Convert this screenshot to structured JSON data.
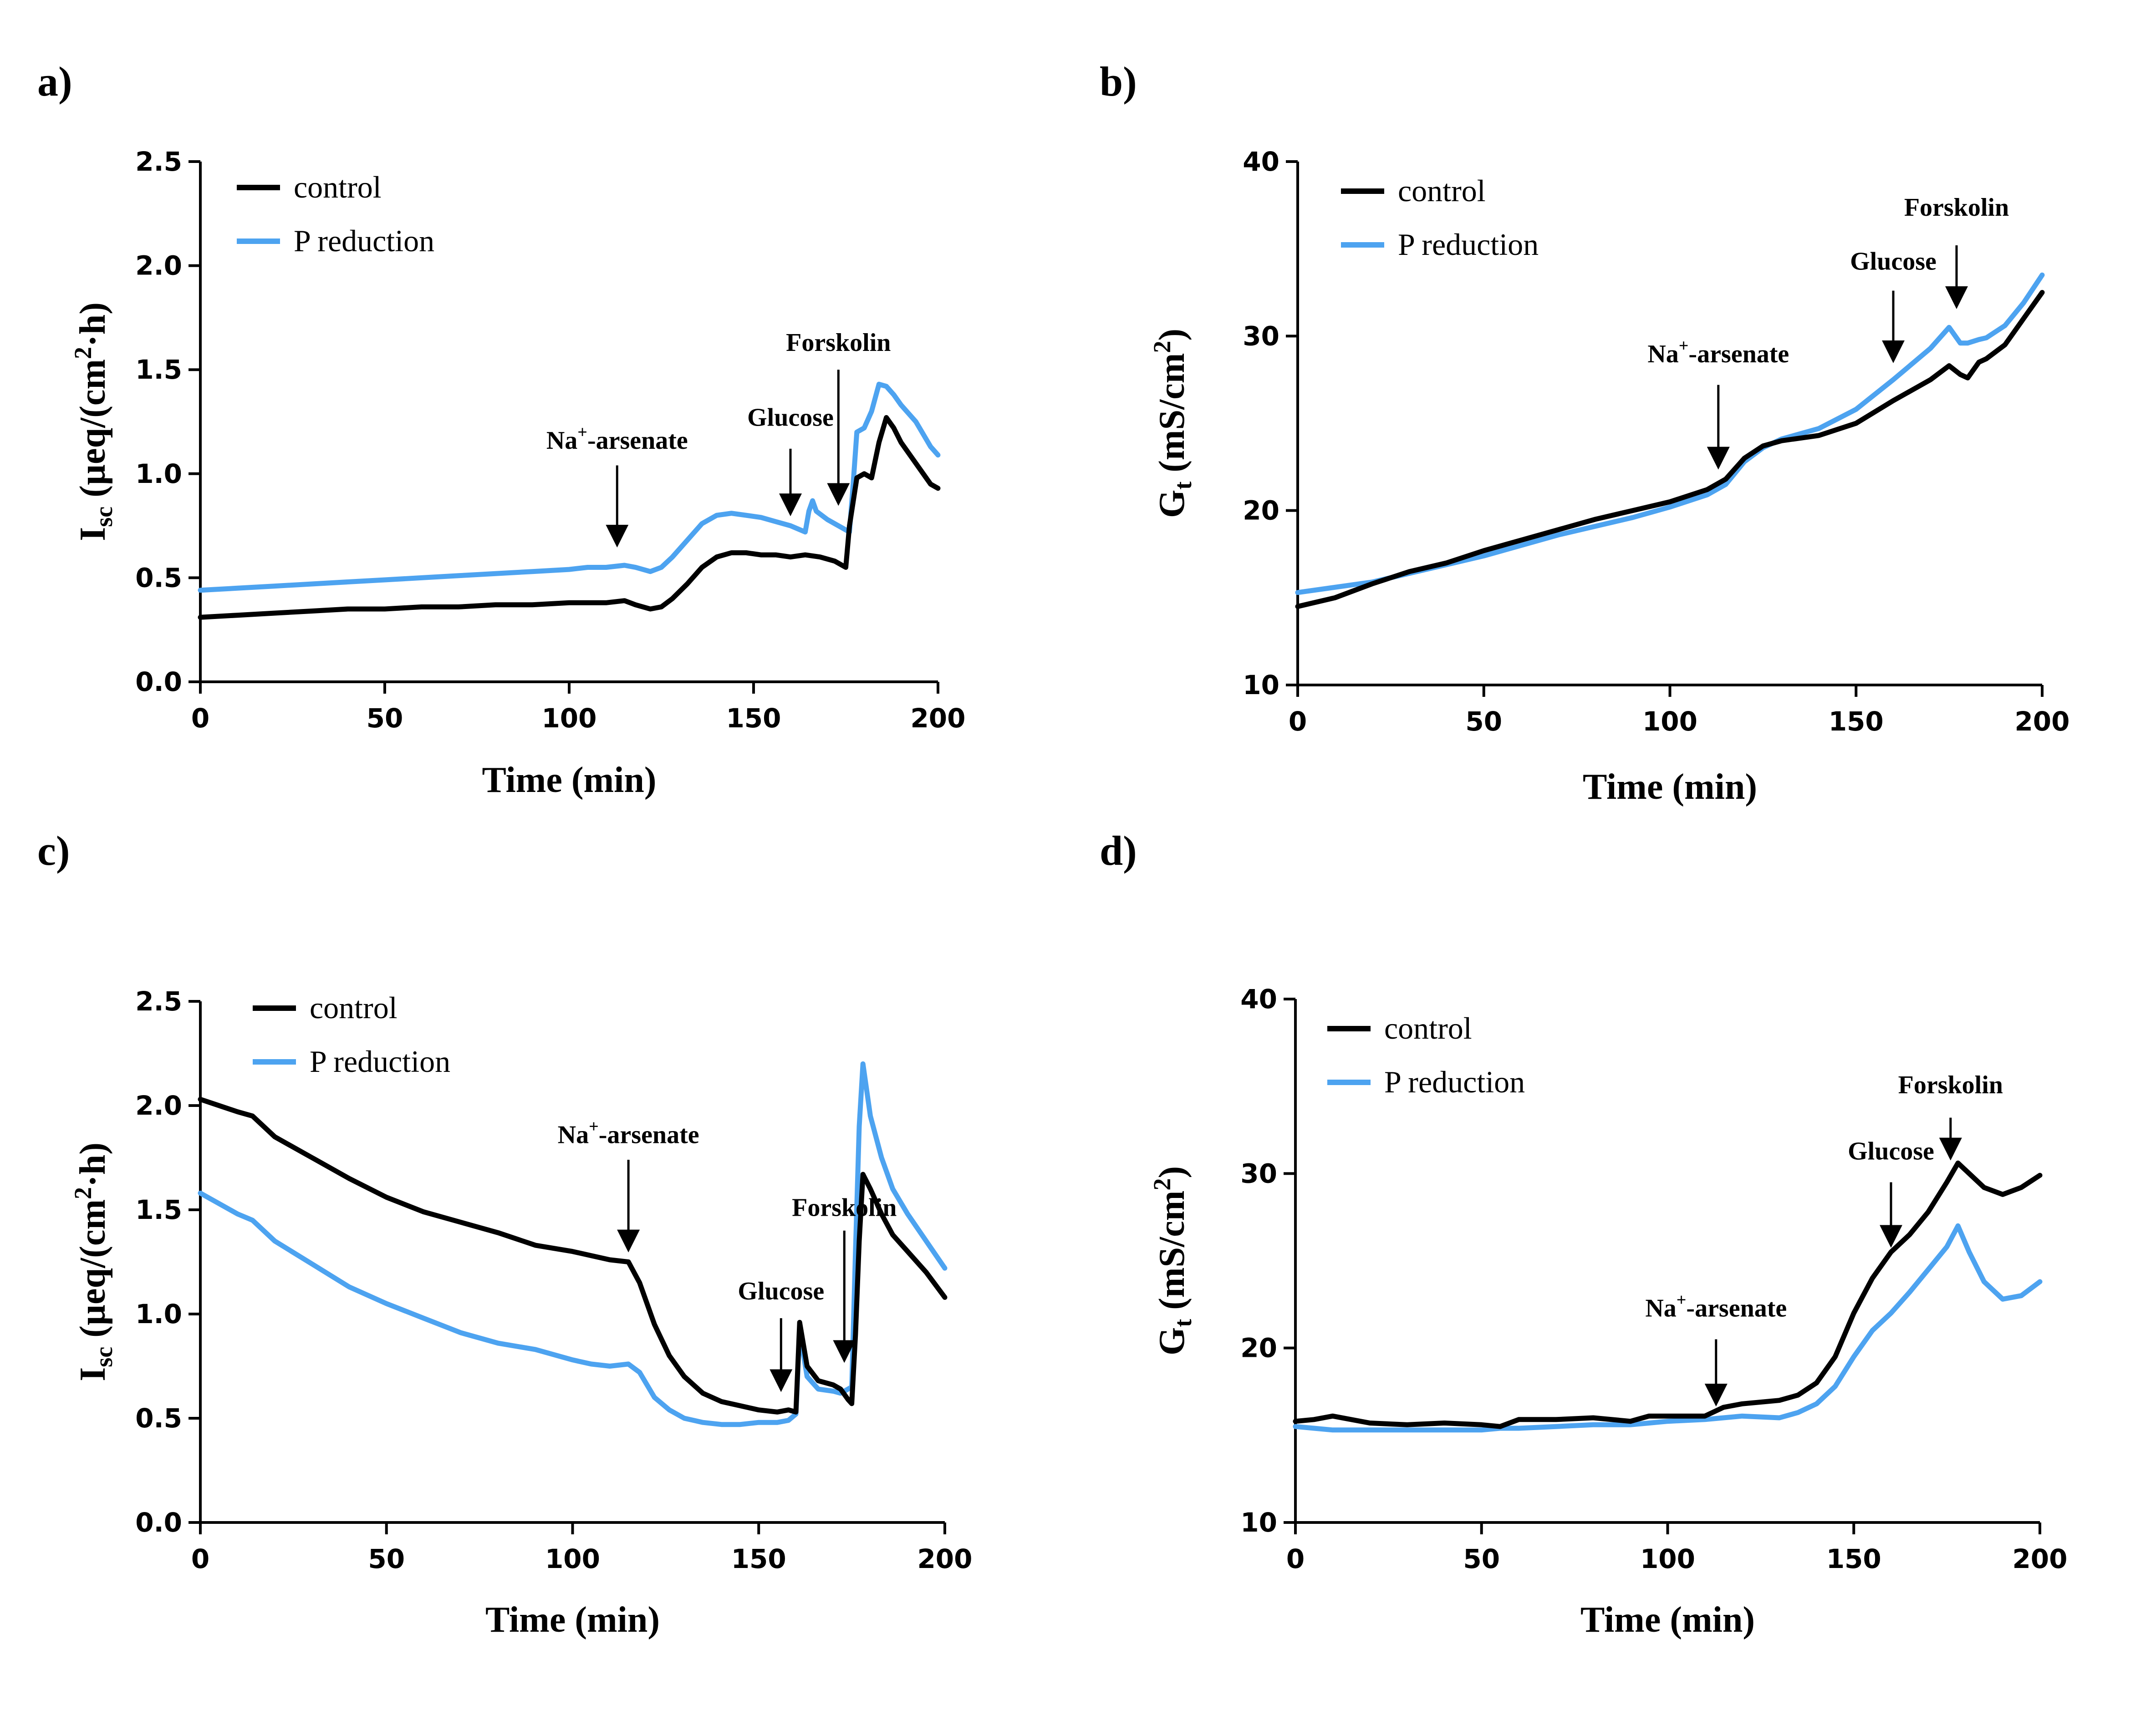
{
  "colors": {
    "control": "#000000",
    "p_reduction": "#4da3f0"
  },
  "chart_data": [
    {
      "panel": "a)",
      "type": "line",
      "xlabel": "Time (min)",
      "ylabel": {
        "main": "I",
        "sub": "sc",
        "rest1": " (µeq/(cm",
        "sup": "2",
        "rest2": "·h)"
      },
      "xlim": [
        0,
        200
      ],
      "ylim": [
        0,
        2.5
      ],
      "xticks": [
        0,
        50,
        100,
        150,
        200
      ],
      "xtick_labels": [
        "0",
        "50",
        "100",
        "150",
        "200"
      ],
      "yticks": [
        0,
        0.5,
        1.0,
        1.5,
        2.0,
        2.5
      ],
      "ytick_labels": [
        "0.0",
        "0.5",
        "1.0",
        "1.5",
        "2.0",
        "2.5"
      ],
      "legend": {
        "position": "top-left",
        "entries": [
          "control",
          "P reduction"
        ]
      },
      "series": [
        {
          "name": "control",
          "x": [
            0,
            10,
            20,
            30,
            40,
            50,
            60,
            70,
            80,
            90,
            100,
            105,
            110,
            115,
            118,
            122,
            125,
            128,
            132,
            136,
            140,
            144,
            148,
            152,
            156,
            160,
            164,
            168,
            172,
            175,
            176,
            178,
            180,
            182,
            184,
            186,
            188,
            190,
            194,
            198,
            200
          ],
          "y": [
            0.31,
            0.32,
            0.33,
            0.34,
            0.35,
            0.35,
            0.36,
            0.36,
            0.37,
            0.37,
            0.38,
            0.38,
            0.38,
            0.39,
            0.37,
            0.35,
            0.36,
            0.4,
            0.47,
            0.55,
            0.6,
            0.62,
            0.62,
            0.61,
            0.61,
            0.6,
            0.61,
            0.6,
            0.58,
            0.55,
            0.75,
            0.98,
            1.0,
            0.98,
            1.15,
            1.27,
            1.22,
            1.15,
            1.05,
            0.95,
            0.93
          ]
        },
        {
          "name": "P reduction",
          "x": [
            0,
            10,
            20,
            30,
            40,
            50,
            60,
            70,
            80,
            90,
            100,
            105,
            110,
            115,
            118,
            122,
            125,
            128,
            132,
            136,
            140,
            144,
            148,
            152,
            156,
            160,
            164,
            165,
            166,
            167,
            170,
            174,
            176,
            177,
            178,
            180,
            182,
            184,
            186,
            188,
            190,
            194,
            198,
            200
          ],
          "y": [
            0.44,
            0.45,
            0.46,
            0.47,
            0.48,
            0.49,
            0.5,
            0.51,
            0.52,
            0.53,
            0.54,
            0.55,
            0.55,
            0.56,
            0.55,
            0.53,
            0.55,
            0.6,
            0.68,
            0.76,
            0.8,
            0.81,
            0.8,
            0.79,
            0.77,
            0.75,
            0.72,
            0.82,
            0.87,
            0.82,
            0.78,
            0.74,
            0.72,
            0.95,
            1.2,
            1.22,
            1.3,
            1.43,
            1.42,
            1.38,
            1.33,
            1.25,
            1.13,
            1.09
          ]
        }
      ],
      "annotations": [
        {
          "label": "Na",
          "sup": "+",
          "rest": "-arsenate",
          "x": 113,
          "y_tip": 0.65,
          "y_tail": 1.04,
          "text_y": 1.12
        },
        {
          "label": "Glucose",
          "x": 160,
          "y_tip": 0.8,
          "y_tail": 1.12,
          "text_y": 1.23
        },
        {
          "label": "Forskolin",
          "x": 173,
          "y_tip": 0.85,
          "y_tail": 1.5,
          "text_y": 1.59
        }
      ]
    },
    {
      "panel": "b)",
      "type": "line",
      "xlabel": "Time (min)",
      "ylabel": {
        "main": "G",
        "sub": "t",
        "rest1": " (mS/cm",
        "sup": "2",
        "rest2": ")"
      },
      "xlim": [
        0,
        200
      ],
      "ylim": [
        10,
        40
      ],
      "xticks": [
        0,
        50,
        100,
        150,
        200
      ],
      "xtick_labels": [
        "0",
        "50",
        "100",
        "150",
        "200"
      ],
      "yticks": [
        10,
        20,
        30,
        40
      ],
      "ytick_labels": [
        "10",
        "20",
        "30",
        "40"
      ],
      "legend": {
        "position": "top-left",
        "entries": [
          "control",
          "P reduction"
        ]
      },
      "series": [
        {
          "name": "control",
          "x": [
            0,
            10,
            20,
            30,
            40,
            50,
            60,
            70,
            80,
            90,
            100,
            110,
            115,
            120,
            125,
            130,
            140,
            150,
            160,
            170,
            175,
            178,
            180,
            183,
            185,
            190,
            195,
            200
          ],
          "y": [
            14.5,
            15.0,
            15.8,
            16.5,
            17.0,
            17.7,
            18.3,
            18.9,
            19.5,
            20.0,
            20.5,
            21.2,
            21.8,
            23.0,
            23.7,
            24.0,
            24.3,
            25.0,
            26.3,
            27.5,
            28.3,
            27.8,
            27.6,
            28.5,
            28.7,
            29.5,
            31.0,
            32.5
          ]
        },
        {
          "name": "P reduction",
          "x": [
            0,
            10,
            20,
            30,
            40,
            50,
            60,
            70,
            80,
            90,
            100,
            110,
            115,
            120,
            125,
            130,
            140,
            150,
            160,
            170,
            175,
            178,
            180,
            183,
            185,
            190,
            195,
            200
          ],
          "y": [
            15.3,
            15.6,
            15.9,
            16.4,
            16.9,
            17.4,
            18.0,
            18.6,
            19.1,
            19.6,
            20.2,
            20.9,
            21.5,
            22.8,
            23.6,
            24.1,
            24.7,
            25.8,
            27.5,
            29.3,
            30.5,
            29.6,
            29.6,
            29.8,
            29.9,
            30.6,
            31.9,
            33.5
          ]
        }
      ],
      "annotations": [
        {
          "label": "Na",
          "sup": "+",
          "rest": "-arsenate",
          "x": 113,
          "y_tip": 22.4,
          "y_tail": 27.2,
          "text_y": 28.5
        },
        {
          "label": "Glucose",
          "x": 160,
          "y_tip": 28.5,
          "y_tail": 32.6,
          "text_y": 33.8
        },
        {
          "label": "Forskolin",
          "x": 177,
          "y_tip": 31.6,
          "y_tail": 35.2,
          "text_y": 36.9
        }
      ]
    },
    {
      "panel": "c)",
      "type": "line",
      "xlabel": "Time (min)",
      "ylabel": {
        "main": "I",
        "sub": "sc",
        "rest1": " (µeq/(cm",
        "sup": "2",
        "rest2": "·h)"
      },
      "xlim": [
        0,
        200
      ],
      "ylim": [
        0,
        2.5
      ],
      "xticks": [
        0,
        50,
        100,
        150,
        200
      ],
      "xtick_labels": [
        "0",
        "50",
        "100",
        "150",
        "200"
      ],
      "yticks": [
        0,
        0.5,
        1.0,
        1.5,
        2.0,
        2.5
      ],
      "ytick_labels": [
        "0.0",
        "0.5",
        "1.0",
        "1.5",
        "2.0",
        "2.5"
      ],
      "legend": {
        "position": "top-left",
        "entries": [
          "control",
          "P reduction"
        ]
      },
      "series": [
        {
          "name": "control",
          "x": [
            0,
            5,
            10,
            14,
            20,
            30,
            40,
            50,
            60,
            70,
            80,
            90,
            100,
            105,
            110,
            115,
            118,
            122,
            126,
            130,
            135,
            140,
            145,
            150,
            155,
            158,
            160,
            161,
            163,
            166,
            170,
            172,
            174,
            175,
            176,
            177,
            178,
            180,
            183,
            186,
            190,
            195,
            200
          ],
          "y": [
            2.03,
            2.0,
            1.97,
            1.95,
            1.85,
            1.75,
            1.65,
            1.56,
            1.49,
            1.44,
            1.39,
            1.33,
            1.3,
            1.28,
            1.26,
            1.25,
            1.15,
            0.95,
            0.8,
            0.7,
            0.62,
            0.58,
            0.56,
            0.54,
            0.53,
            0.54,
            0.53,
            0.96,
            0.75,
            0.68,
            0.66,
            0.64,
            0.59,
            0.57,
            0.9,
            1.35,
            1.67,
            1.6,
            1.48,
            1.38,
            1.3,
            1.2,
            1.08
          ]
        },
        {
          "name": "P reduction",
          "x": [
            0,
            5,
            10,
            14,
            20,
            30,
            40,
            50,
            60,
            70,
            80,
            90,
            100,
            105,
            110,
            115,
            118,
            122,
            126,
            130,
            135,
            140,
            145,
            150,
            155,
            158,
            160,
            161,
            163,
            166,
            170,
            172,
            174,
            175,
            176,
            177,
            178,
            180,
            183,
            186,
            190,
            195,
            200
          ],
          "y": [
            1.58,
            1.53,
            1.48,
            1.45,
            1.35,
            1.24,
            1.13,
            1.05,
            0.98,
            0.91,
            0.86,
            0.83,
            0.78,
            0.76,
            0.75,
            0.76,
            0.72,
            0.6,
            0.54,
            0.5,
            0.48,
            0.47,
            0.47,
            0.48,
            0.48,
            0.49,
            0.52,
            0.92,
            0.7,
            0.64,
            0.63,
            0.62,
            0.64,
            0.65,
            1.3,
            1.9,
            2.2,
            1.95,
            1.75,
            1.6,
            1.48,
            1.35,
            1.22
          ]
        }
      ],
      "annotations": [
        {
          "label": "Na",
          "sup": "+",
          "rest": "-arsenate",
          "x": 115,
          "y_tip": 1.3,
          "y_tail": 1.74,
          "text_y": 1.82
        },
        {
          "label": "Glucose",
          "x": 156,
          "y_tip": 0.63,
          "y_tail": 0.98,
          "text_y": 1.07
        },
        {
          "label": "Forskolin",
          "x": 173,
          "y_tip": 0.77,
          "y_tail": 1.4,
          "text_y": 1.47
        }
      ]
    },
    {
      "panel": "d)",
      "type": "line",
      "xlabel": "Time (min)",
      "ylabel": {
        "main": "G",
        "sub": "t",
        "rest1": " (mS/cm",
        "sup": "2",
        "rest2": ")"
      },
      "xlim": [
        0,
        200
      ],
      "ylim": [
        10,
        40
      ],
      "xticks": [
        0,
        50,
        100,
        150,
        200
      ],
      "xtick_labels": [
        "0",
        "50",
        "100",
        "150",
        "200"
      ],
      "yticks": [
        10,
        20,
        30,
        40
      ],
      "ytick_labels": [
        "10",
        "20",
        "30",
        "40"
      ],
      "legend": {
        "position": "top-left",
        "entries": [
          "control",
          "P reduction"
        ]
      },
      "series": [
        {
          "name": "control",
          "x": [
            0,
            5,
            10,
            20,
            30,
            40,
            50,
            55,
            60,
            70,
            80,
            90,
            95,
            100,
            110,
            115,
            120,
            130,
            135,
            140,
            145,
            150,
            155,
            160,
            165,
            170,
            175,
            178,
            181,
            185,
            190,
            195,
            200
          ],
          "y": [
            15.8,
            15.9,
            16.1,
            15.7,
            15.6,
            15.7,
            15.6,
            15.5,
            15.9,
            15.9,
            16.0,
            15.8,
            16.1,
            16.1,
            16.1,
            16.6,
            16.8,
            17.0,
            17.3,
            18.0,
            19.5,
            22.0,
            24.0,
            25.5,
            26.5,
            27.8,
            29.5,
            30.6,
            30.0,
            29.2,
            28.8,
            29.2,
            29.9
          ]
        },
        {
          "name": "P reduction",
          "x": [
            0,
            5,
            10,
            20,
            30,
            40,
            50,
            55,
            60,
            70,
            80,
            90,
            95,
            100,
            110,
            115,
            120,
            130,
            135,
            140,
            145,
            150,
            155,
            160,
            165,
            170,
            175,
            178,
            181,
            185,
            190,
            195,
            200
          ],
          "y": [
            15.5,
            15.4,
            15.3,
            15.3,
            15.3,
            15.3,
            15.3,
            15.4,
            15.4,
            15.5,
            15.6,
            15.6,
            15.7,
            15.8,
            15.9,
            16.0,
            16.1,
            16.0,
            16.3,
            16.8,
            17.8,
            19.5,
            21.0,
            22.0,
            23.2,
            24.5,
            25.8,
            27.0,
            25.5,
            23.8,
            22.8,
            23.0,
            23.8
          ]
        }
      ],
      "annotations": [
        {
          "label": "Na",
          "sup": "+",
          "rest": "-arsenate",
          "x": 113,
          "y_tip": 16.7,
          "y_tail": 20.5,
          "text_y": 21.8
        },
        {
          "label": "Glucose",
          "x": 160,
          "y_tip": 25.8,
          "y_tail": 29.5,
          "text_y": 30.8
        },
        {
          "label": "Forskolin",
          "x": 176,
          "y_tip": 30.8,
          "y_tail": 33.2,
          "text_y": 34.6
        }
      ]
    }
  ]
}
